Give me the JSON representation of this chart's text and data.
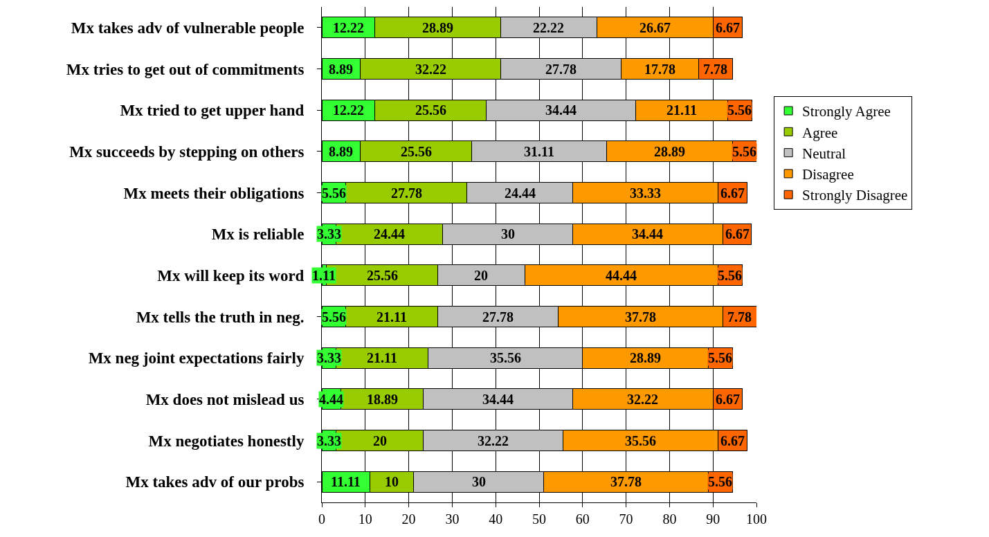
{
  "chart_data": {
    "type": "bar",
    "orientation": "horizontal",
    "stacked": true,
    "data_labels": true,
    "grid": "x",
    "legend": "right",
    "categories": [
      "Mx takes adv of vulnerable people",
      "Mx tries to get out of commitments",
      "Mx tried to get upper hand",
      "Mx succeeds by stepping on others",
      "Mx meets their obligations",
      "Mx is reliable",
      "Mx will keep its word",
      "Mx tells the truth in neg.",
      "Mx neg joint expectations fairly",
      "Mx does not mislead us",
      "Mx negotiates honestly",
      "Mx takes adv of our probs"
    ],
    "xlim": [
      0,
      100
    ],
    "xticks": [
      0,
      10,
      20,
      30,
      40,
      50,
      60,
      70,
      80,
      90,
      100
    ],
    "series": [
      {
        "name": "Strongly Agree",
        "color": "#33ff33",
        "values": [
          12.22,
          8.89,
          12.22,
          8.89,
          5.56,
          3.33,
          1.11,
          5.56,
          3.33,
          4.44,
          3.33,
          11.11
        ]
      },
      {
        "name": "Agree",
        "color": "#99cc00",
        "values": [
          28.89,
          32.22,
          25.56,
          25.56,
          27.78,
          24.44,
          25.56,
          21.11,
          21.11,
          18.89,
          20,
          10
        ]
      },
      {
        "name": "Neutral",
        "color": "#c0c0c0",
        "values": [
          22.22,
          27.78,
          34.44,
          31.11,
          24.44,
          30,
          20,
          27.78,
          35.56,
          34.44,
          32.22,
          30
        ]
      },
      {
        "name": "Disagree",
        "color": "#ff9900",
        "values": [
          26.67,
          17.78,
          21.11,
          28.89,
          33.33,
          34.44,
          44.44,
          37.78,
          28.89,
          32.22,
          35.56,
          37.78
        ]
      },
      {
        "name": "Strongly Disagree",
        "color": "#ff6600",
        "values": [
          6.67,
          7.78,
          5.56,
          5.56,
          6.67,
          6.67,
          5.56,
          7.78,
          5.56,
          6.67,
          6.67,
          5.56
        ]
      }
    ]
  }
}
